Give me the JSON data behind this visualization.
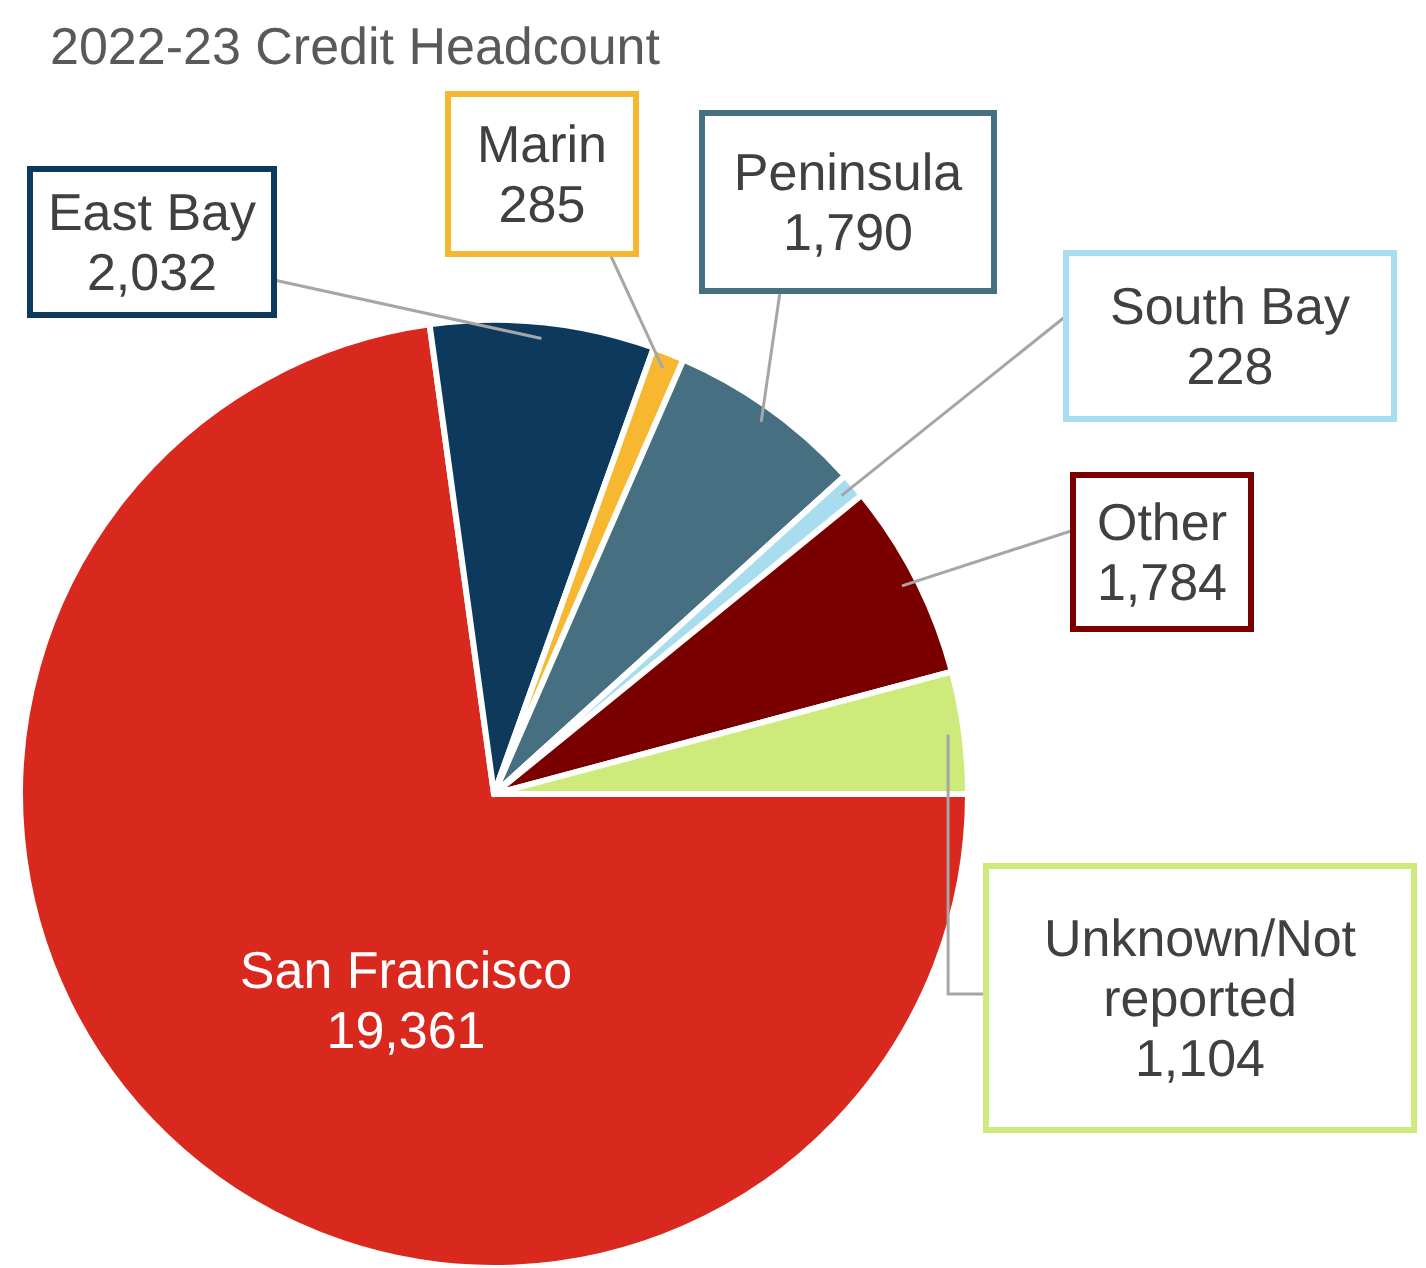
{
  "chart_data": {
    "type": "pie",
    "title": "2022-23 Credit Headcount",
    "categories": [
      "San Francisco",
      "East Bay",
      "Marin",
      "Peninsula",
      "South Bay",
      "Other",
      "Unknown/Not reported"
    ],
    "values": [
      19361,
      2032,
      285,
      1790,
      228,
      1784,
      1104
    ],
    "colors": [
      "#d9281e",
      "#0d3a5c",
      "#f7b731",
      "#466f82",
      "#a8dcef",
      "#7a0000",
      "#cdea7a"
    ],
    "value_labels": [
      "19,361",
      "2,032",
      "285",
      "1,790",
      "228",
      "1,784",
      "1,104"
    ]
  }
}
